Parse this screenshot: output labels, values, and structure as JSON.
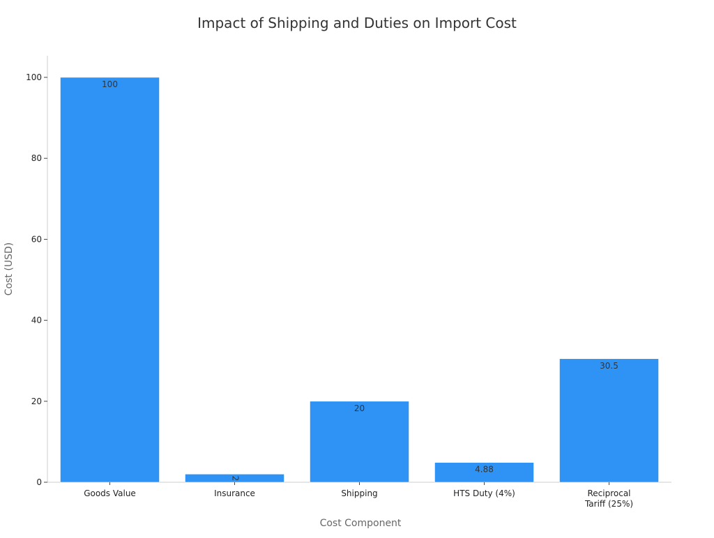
{
  "chart_data": {
    "type": "bar",
    "title": "Impact of Shipping and Duties on Import Cost",
    "xlabel": "Cost Component",
    "ylabel": "Cost (USD)",
    "categories": [
      "Goods Value",
      "Insurance",
      "Shipping",
      "HTS Duty (4%)",
      "Reciprocal Tariff (25%)"
    ],
    "category_lines": [
      [
        "Goods Value"
      ],
      [
        "Insurance"
      ],
      [
        "Shipping"
      ],
      [
        "HTS Duty (4%)"
      ],
      [
        "Reciprocal",
        "Tariff (25%)"
      ]
    ],
    "values": [
      100,
      2,
      20,
      4.88,
      30.5
    ],
    "data_labels": [
      "100",
      "2",
      "20",
      "4.88",
      "30.5"
    ],
    "yticks": [
      0,
      20,
      40,
      60,
      80,
      100
    ],
    "ylim": [
      0,
      105
    ],
    "grid": false,
    "bar_color": "#2F93F5"
  }
}
